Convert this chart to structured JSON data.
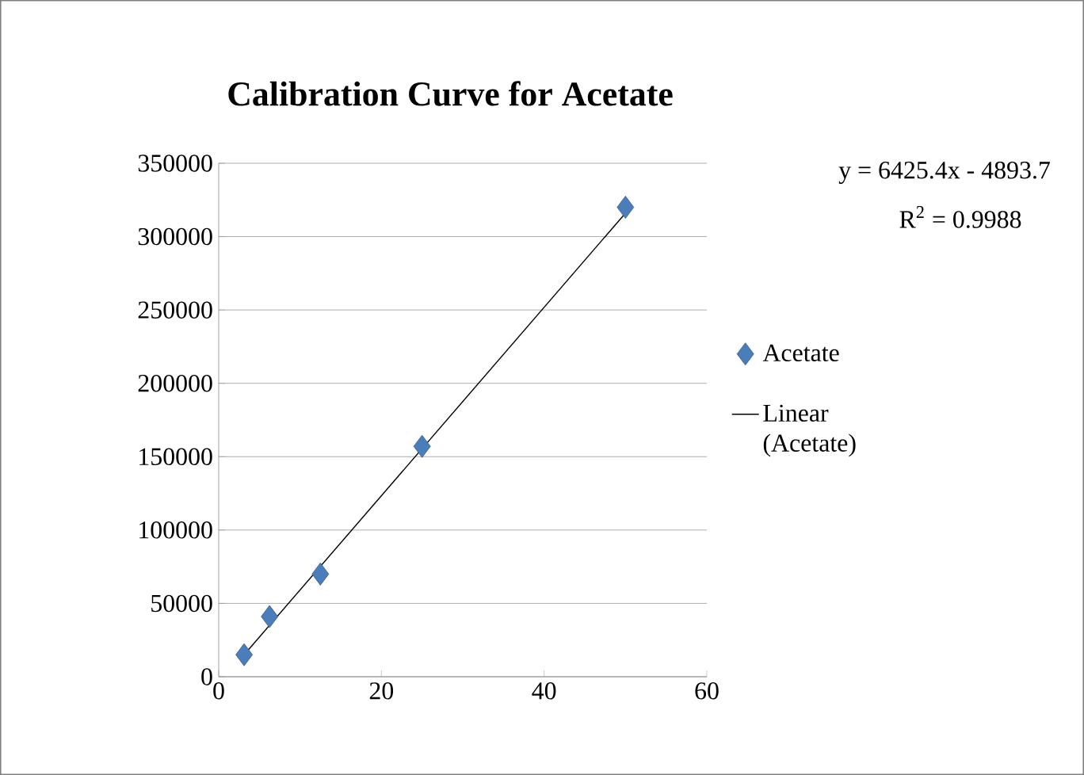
{
  "chart_data": {
    "type": "scatter",
    "title": "Calibration Curve for Acetate",
    "x": [
      3.125,
      6.25,
      12.5,
      25,
      50
    ],
    "series": [
      {
        "name": "Acetate",
        "color": "#4a7ebb",
        "marker": "diamond",
        "values": [
          15000,
          41000,
          70000,
          157000,
          320000
        ]
      },
      {
        "name": "Linear (Acetate)",
        "type": "line",
        "color": "#000000",
        "line_style": "solid",
        "x": [
          3.125,
          50
        ],
        "values": [
          15000,
          316000
        ]
      }
    ],
    "annotations": [
      "y = 6425.4x - 4893.7",
      "R$^{2}$ = 0.9988"
    ],
    "xlim": [
      0,
      60
    ],
    "xticks": [
      0,
      20,
      40,
      60
    ],
    "ylim": [
      0,
      350000
    ],
    "yticks": [
      0,
      50000,
      100000,
      150000,
      200000,
      250000,
      300000,
      350000
    ],
    "grid": "y",
    "legend": "right"
  }
}
